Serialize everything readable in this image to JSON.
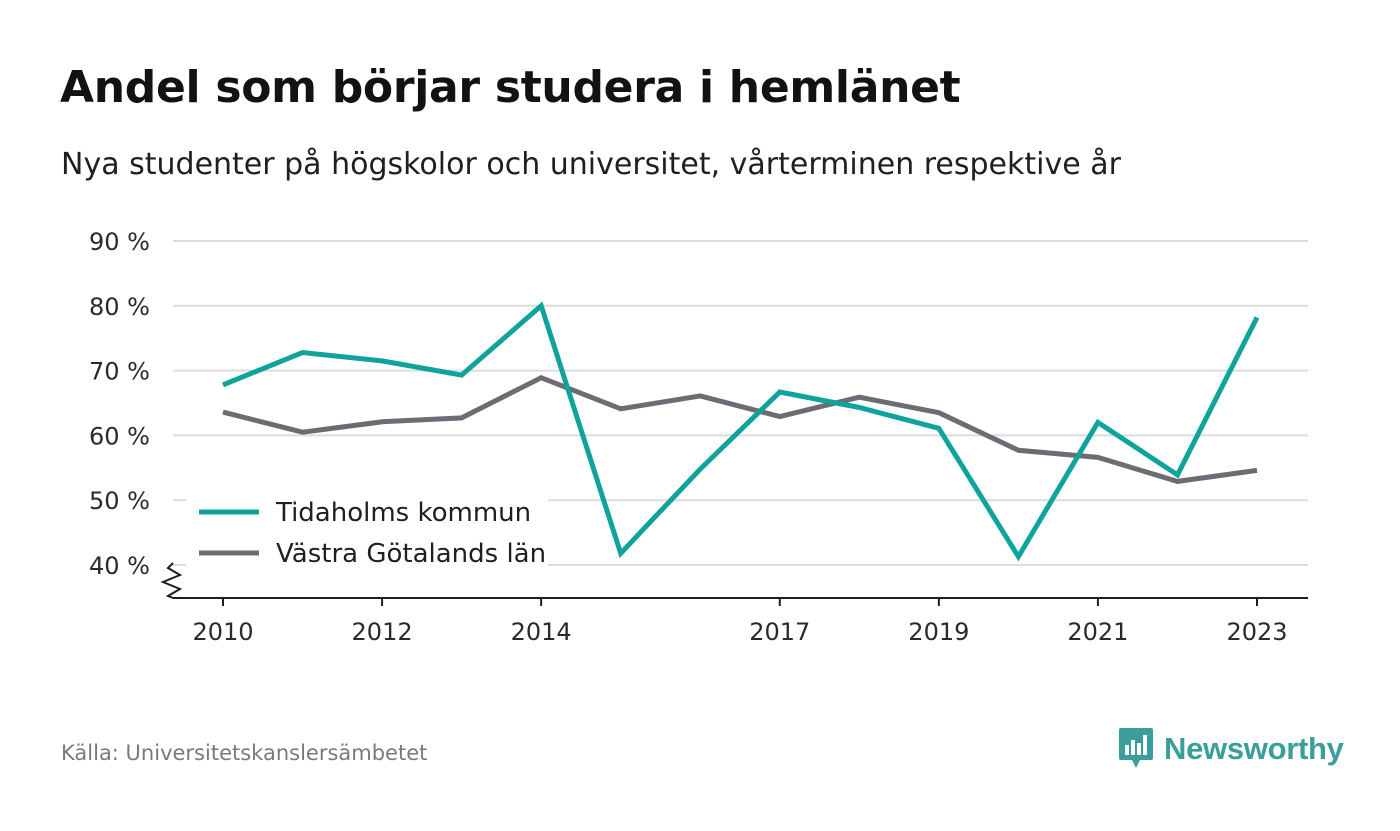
{
  "header": {
    "title": "Andel som börjar studera i hemlänet",
    "subtitle": "Nya studenter på högskolor och universitet, vårterminen respektive år"
  },
  "footer": {
    "source": "Källa: Universitetskanslersämbetet",
    "brand": "Newsworthy",
    "brand_icon": "newsworthy-logo-icon"
  },
  "colors": {
    "tidaholm": "#0fa39c",
    "vastra_gotaland": "#6d6b73",
    "grid": "#dcdcdc",
    "axis": "#1f1f1f",
    "brand": "#3c9e9a"
  },
  "chart_data": {
    "type": "line",
    "title": "Andel som börjar studera i hemlänet",
    "subtitle": "Nya studenter på högskolor och universitet, vårterminen respektive år",
    "x": [
      2010,
      2011,
      2012,
      2013,
      2014,
      2015,
      2016,
      2017,
      2018,
      2019,
      2020,
      2021,
      2022,
      2023
    ],
    "x_tick_labels": [
      "2010",
      "2012",
      "2014",
      "2017",
      "2019",
      "2021",
      "2023"
    ],
    "y_ticks": [
      40,
      50,
      60,
      70,
      80,
      90
    ],
    "y_tick_labels": [
      "40 %",
      "50 %",
      "60 %",
      "70 %",
      "80 %",
      "90 %"
    ],
    "ylim": [
      35,
      90
    ],
    "y_axis_break": true,
    "grid": true,
    "legend_position": "bottom-left",
    "series": [
      {
        "name": "Tidaholms kommun",
        "color": "#0fa39c",
        "values": [
          67.8,
          72.8,
          71.5,
          69.3,
          80.0,
          41.8,
          54.8,
          66.7,
          64.3,
          61.1,
          41.3,
          62.0,
          53.9,
          78.2
        ]
      },
      {
        "name": "Västra Götalands län",
        "color": "#6d6b73",
        "values": [
          63.6,
          60.5,
          62.1,
          62.7,
          68.9,
          64.1,
          66.1,
          62.9,
          65.9,
          63.5,
          57.7,
          56.6,
          52.9,
          54.6
        ]
      }
    ]
  }
}
